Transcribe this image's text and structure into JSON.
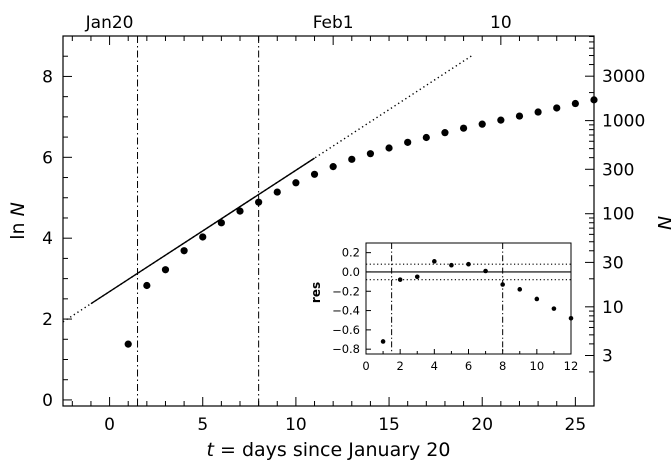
{
  "chart_data": [
    {
      "type": "scatter",
      "xlabel": "t = days since January 20",
      "ylabel": "ln N",
      "y2label": "N",
      "xlim": [
        -2.5,
        26
      ],
      "ylim": [
        -0.15,
        9.0
      ],
      "xticks": [
        0,
        5,
        10,
        15,
        20,
        25
      ],
      "yticks": [
        0,
        2,
        4,
        6,
        8
      ],
      "top_axis": {
        "ticks": [
          {
            "x": 0,
            "label": "Jan20"
          },
          {
            "x": 12,
            "label": "Feb1"
          },
          {
            "x": 21,
            "label": "10"
          }
        ]
      },
      "right_axis": {
        "ticks": [
          3,
          10,
          30,
          100,
          300,
          1000,
          3000
        ]
      },
      "vlines": [
        1.5,
        8
      ],
      "fit_line": {
        "solid_x": [
          -1,
          11
        ],
        "dotted_x": [
          -2.5,
          19.5
        ],
        "intercept": 2.68,
        "slope": 0.3
      },
      "series": [
        {
          "x": [
            1,
            2,
            3,
            4,
            5,
            6,
            7,
            8,
            9,
            10,
            11,
            12,
            13,
            14,
            15,
            16,
            17,
            18,
            19,
            20,
            21,
            22,
            23,
            24,
            25,
            26
          ],
          "y": [
            1.38,
            2.83,
            3.22,
            3.69,
            4.03,
            4.38,
            4.67,
            4.89,
            5.14,
            5.37,
            5.58,
            5.77,
            5.95,
            6.09,
            6.23,
            6.37,
            6.49,
            6.61,
            6.72,
            6.82,
            6.92,
            7.02,
            7.12,
            7.22,
            7.33,
            7.42
          ]
        }
      ],
      "grid": false,
      "legend": "none"
    },
    {
      "type": "scatter",
      "ylabel": "res",
      "xlim": [
        0,
        12
      ],
      "ylim": [
        -0.85,
        0.3
      ],
      "xticks": [
        0,
        2,
        4,
        6,
        8,
        10,
        12
      ],
      "yticks": [
        0.2,
        0.0,
        -0.2,
        -0.4,
        -0.6,
        -0.8
      ],
      "ytick_labels": [
        "0.2",
        "0.0",
        "−0.2",
        "−0.4",
        "−0.6",
        "−0.8"
      ],
      "hlines": [
        0.0,
        0.08,
        -0.08
      ],
      "vlines": [
        1.5,
        8
      ],
      "series": [
        {
          "x": [
            1,
            2,
            3,
            4,
            5,
            6,
            7,
            8,
            9,
            10,
            11,
            12
          ],
          "y": [
            -0.72,
            -0.08,
            -0.05,
            0.11,
            0.07,
            0.08,
            0.01,
            -0.13,
            -0.18,
            -0.28,
            -0.38,
            -0.48
          ]
        }
      ],
      "grid": false,
      "legend": "none"
    }
  ]
}
